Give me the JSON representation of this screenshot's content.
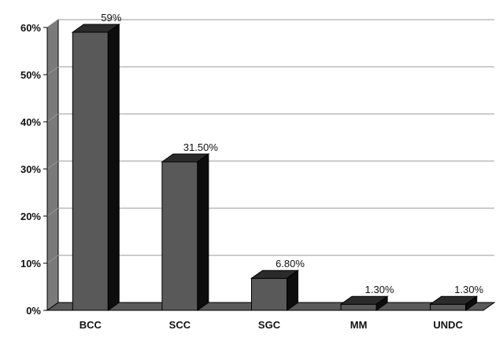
{
  "chart_data": {
    "type": "bar",
    "style": "3d-column",
    "categories": [
      "BCC",
      "SCC",
      "SGC",
      "MM",
      "UNDC"
    ],
    "values": [
      59,
      31.5,
      6.8,
      1.3,
      1.3
    ],
    "data_labels": [
      "59%",
      "31.50%",
      "6.80%",
      "1.30%",
      "1.30%"
    ],
    "y_ticks": [
      "0%",
      "10%",
      "20%",
      "30%",
      "40%",
      "50%",
      "60%"
    ],
    "ylim": [
      0,
      60
    ],
    "title": "",
    "xlabel": "",
    "ylabel": "",
    "grid": true,
    "legend": "none",
    "colors": {
      "bar_front": "#595959",
      "bar_top": "#2b2b2b",
      "bar_side": "#0d0d0d",
      "floor": "#5a5a5a",
      "wall": "#7a7a7a",
      "grid": "#9a9a9a",
      "axis": "#000000"
    }
  }
}
